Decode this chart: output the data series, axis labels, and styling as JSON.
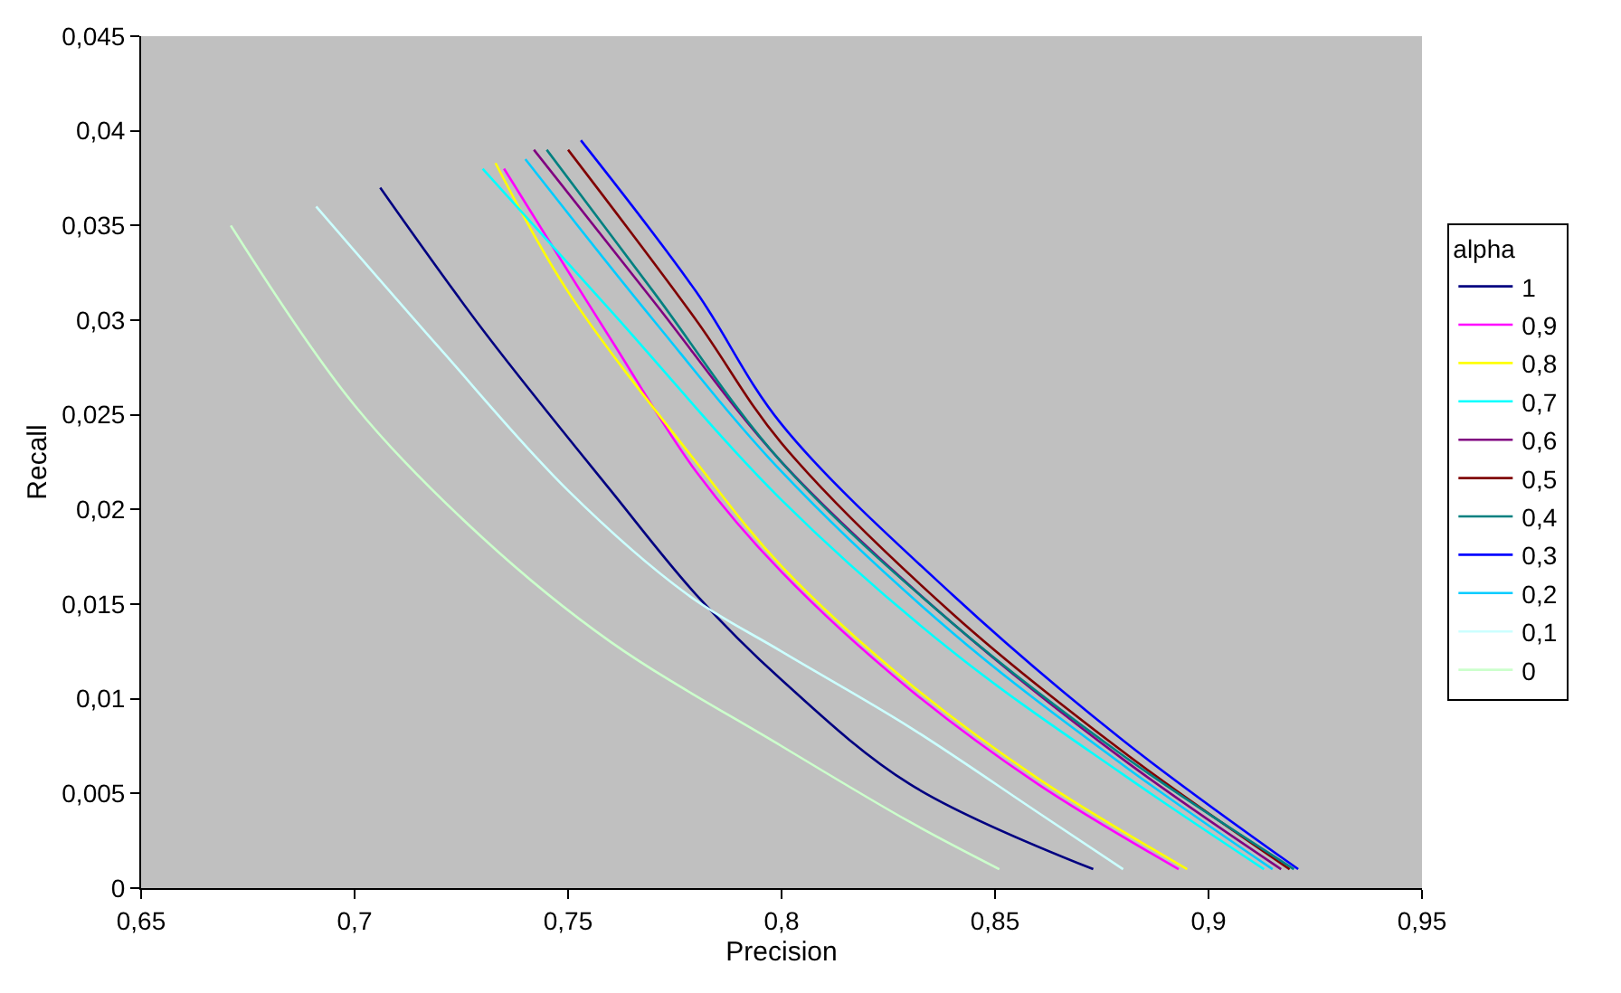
{
  "chart_data": {
    "type": "line",
    "xlabel": "Precision",
    "ylabel": "Recall",
    "legend_title": "alpha",
    "legend": "right",
    "grid": false,
    "marker": "none",
    "line_style": "solid",
    "xlim": [
      0.65,
      0.95
    ],
    "ylim": [
      0,
      0.045
    ],
    "xticks": [
      {
        "value": 0.65,
        "label": "0,65"
      },
      {
        "value": 0.7,
        "label": "0,7"
      },
      {
        "value": 0.75,
        "label": "0,75"
      },
      {
        "value": 0.8,
        "label": "0,8"
      },
      {
        "value": 0.85,
        "label": "0,85"
      },
      {
        "value": 0.9,
        "label": "0,9"
      },
      {
        "value": 0.95,
        "label": "0,95"
      }
    ],
    "yticks": [
      0,
      {
        "value": 0.005,
        "label": "0,005"
      },
      {
        "value": 0.01,
        "label": "0,01"
      },
      {
        "value": 0.015,
        "label": "0,015"
      },
      {
        "value": 0.02,
        "label": "0,02"
      },
      {
        "value": 0.025,
        "label": "0,025"
      },
      {
        "value": 0.03,
        "label": "0,03"
      },
      {
        "value": 0.035,
        "label": "0,035"
      },
      {
        "value": 0.04,
        "label": "0,04"
      },
      {
        "value": 0.045,
        "label": "0,045"
      }
    ],
    "series": [
      {
        "name": "1",
        "color": "#000080",
        "x": [
          0.706,
          0.73,
          0.76,
          0.78,
          0.8,
          0.83,
          0.873
        ],
        "values": [
          0.037,
          0.0295,
          0.021,
          0.0155,
          0.011,
          0.0055,
          0.001
        ]
      },
      {
        "name": "0,9",
        "color": "#ff00ff",
        "x": [
          0.735,
          0.76,
          0.78,
          0.8,
          0.83,
          0.86,
          0.893
        ],
        "values": [
          0.038,
          0.029,
          0.022,
          0.0167,
          0.0105,
          0.0055,
          0.001
        ]
      },
      {
        "name": "0,8",
        "color": "#ffff00",
        "x": [
          0.733,
          0.75,
          0.78,
          0.8,
          0.83,
          0.86,
          0.895
        ],
        "values": [
          0.0383,
          0.0315,
          0.0225,
          0.017,
          0.0108,
          0.0058,
          0.001
        ]
      },
      {
        "name": "0,7",
        "color": "#00ffff",
        "x": [
          0.73,
          0.76,
          0.8,
          0.84,
          0.88,
          0.913
        ],
        "values": [
          0.038,
          0.0305,
          0.0205,
          0.0125,
          0.006,
          0.001
        ]
      },
      {
        "name": "0,6",
        "color": "#800080",
        "x": [
          0.742,
          0.77,
          0.8,
          0.84,
          0.88,
          0.917
        ],
        "values": [
          0.039,
          0.031,
          0.0225,
          0.014,
          0.0068,
          0.001
        ]
      },
      {
        "name": "0,5",
        "color": "#800000",
        "x": [
          0.75,
          0.78,
          0.8,
          0.84,
          0.88,
          0.919
        ],
        "values": [
          0.039,
          0.03,
          0.0235,
          0.0145,
          0.0072,
          0.001
        ]
      },
      {
        "name": "0,4",
        "color": "#008080",
        "x": [
          0.745,
          0.77,
          0.8,
          0.84,
          0.88,
          0.92
        ],
        "values": [
          0.039,
          0.0315,
          0.0225,
          0.014,
          0.007,
          0.001
        ]
      },
      {
        "name": "0,3",
        "color": "#0000ff",
        "x": [
          0.753,
          0.78,
          0.8,
          0.84,
          0.88,
          0.921
        ],
        "values": [
          0.0395,
          0.0315,
          0.0245,
          0.0155,
          0.0078,
          0.001
        ]
      },
      {
        "name": "0,2",
        "color": "#00ccff",
        "x": [
          0.74,
          0.77,
          0.8,
          0.84,
          0.88,
          0.915
        ],
        "values": [
          0.0385,
          0.03,
          0.022,
          0.0135,
          0.0065,
          0.001
        ]
      },
      {
        "name": "0,1",
        "color": "#ccffff",
        "x": [
          0.691,
          0.72,
          0.75,
          0.778,
          0.8,
          0.83,
          0.86,
          0.88
        ],
        "values": [
          0.036,
          0.0285,
          0.021,
          0.0155,
          0.0125,
          0.0085,
          0.004,
          0.001
        ]
      },
      {
        "name": "0",
        "color": "#ccffcc",
        "x": [
          0.671,
          0.7,
          0.73,
          0.76,
          0.8,
          0.83,
          0.851
        ],
        "values": [
          0.035,
          0.0255,
          0.0185,
          0.013,
          0.0075,
          0.0035,
          0.001
        ]
      }
    ]
  }
}
